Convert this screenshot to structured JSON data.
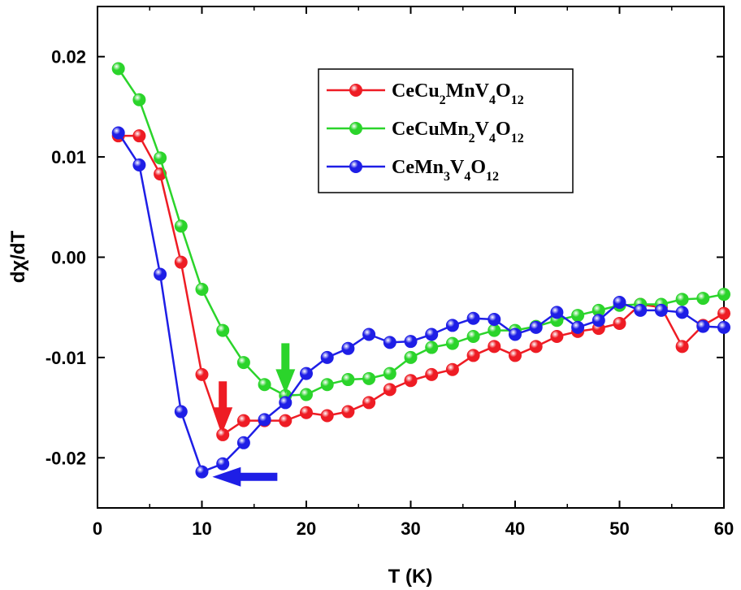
{
  "chart_data": {
    "type": "line",
    "xlabel": "T (K)",
    "ylabel": "dχ/dT",
    "xlim": [
      0,
      60
    ],
    "ylim": [
      -0.025,
      0.025
    ],
    "xticks": [
      0,
      10,
      20,
      30,
      40,
      50,
      60
    ],
    "xtick_labels": [
      "0",
      "10",
      "20",
      "30",
      "40",
      "50",
      "60"
    ],
    "yticks": [
      -0.02,
      -0.01,
      0.0,
      0.01,
      0.02
    ],
    "ytick_labels": [
      "-0.02",
      "-0.01",
      "0.00",
      "0.01",
      "0.02"
    ],
    "grid": false,
    "legend_position": "top-right",
    "x": [
      2,
      4,
      6,
      8,
      10,
      12,
      14,
      16,
      18,
      20,
      22,
      24,
      26,
      28,
      30,
      32,
      34,
      36,
      38,
      40,
      42,
      44,
      46,
      48,
      50,
      52,
      54,
      56,
      58,
      60
    ],
    "series": [
      {
        "name_parts": [
          {
            "t": "CeCu",
            "sub": false
          },
          {
            "t": "2",
            "sub": true
          },
          {
            "t": "MnV",
            "sub": false
          },
          {
            "t": "4",
            "sub": true
          },
          {
            "t": "O",
            "sub": false
          },
          {
            "t": "12",
            "sub": true
          }
        ],
        "color": "#ee1c24",
        "values": [
          0.0121,
          0.0121,
          0.0083,
          -0.0005,
          -0.0117,
          -0.0177,
          -0.0163,
          -0.0163,
          -0.0163,
          -0.0155,
          -0.0158,
          -0.0154,
          -0.0145,
          -0.0132,
          -0.0123,
          -0.0117,
          -0.0112,
          -0.0098,
          -0.0089,
          -0.0098,
          -0.0089,
          -0.0079,
          -0.0074,
          -0.0071,
          -0.0066,
          -0.0047,
          -0.005,
          -0.0089,
          -0.0068,
          -0.0056
        ]
      },
      {
        "name_parts": [
          {
            "t": "CeCuMn",
            "sub": false
          },
          {
            "t": "2",
            "sub": true
          },
          {
            "t": "V",
            "sub": false
          },
          {
            "t": "4",
            "sub": true
          },
          {
            "t": "O",
            "sub": false
          },
          {
            "t": "12",
            "sub": true
          }
        ],
        "color": "#2bd42b",
        "values": [
          0.0188,
          0.0157,
          0.0099,
          0.0031,
          -0.0032,
          -0.0073,
          -0.0105,
          -0.0127,
          -0.0138,
          -0.0137,
          -0.0127,
          -0.0122,
          -0.0121,
          -0.0116,
          -0.01,
          -0.009,
          -0.0086,
          -0.0079,
          -0.0073,
          -0.0073,
          -0.0069,
          -0.0063,
          -0.0058,
          -0.0053,
          -0.0048,
          -0.0047,
          -0.0047,
          -0.0042,
          -0.0041,
          -0.0037
        ]
      },
      {
        "name_parts": [
          {
            "t": "CeMn",
            "sub": false
          },
          {
            "t": "3",
            "sub": true
          },
          {
            "t": "V",
            "sub": false
          },
          {
            "t": "4",
            "sub": true
          },
          {
            "t": "O",
            "sub": false
          },
          {
            "t": "12",
            "sub": true
          }
        ],
        "color": "#1e1ee6",
        "values": [
          0.0124,
          0.0092,
          -0.0017,
          -0.0154,
          -0.0214,
          -0.0206,
          -0.0185,
          -0.0162,
          -0.0145,
          -0.0116,
          -0.01,
          -0.0091,
          -0.0077,
          -0.0085,
          -0.0084,
          -0.0077,
          -0.0068,
          -0.0061,
          -0.0062,
          -0.0077,
          -0.007,
          -0.0055,
          -0.007,
          -0.0063,
          -0.0045,
          -0.0053,
          -0.0053,
          -0.0055,
          -0.0069,
          -0.007
        ]
      }
    ],
    "annotations": [
      {
        "type": "arrow",
        "direction": "down",
        "color": "#ee1c24",
        "target_x": 12,
        "target_y": -0.0174
      },
      {
        "type": "arrow",
        "direction": "down",
        "color": "#2bd42b",
        "target_x": 18,
        "target_y": -0.0136
      },
      {
        "type": "arrow",
        "direction": "left",
        "color": "#1e1ee6",
        "target_x": 11,
        "target_y": -0.0219
      }
    ]
  }
}
